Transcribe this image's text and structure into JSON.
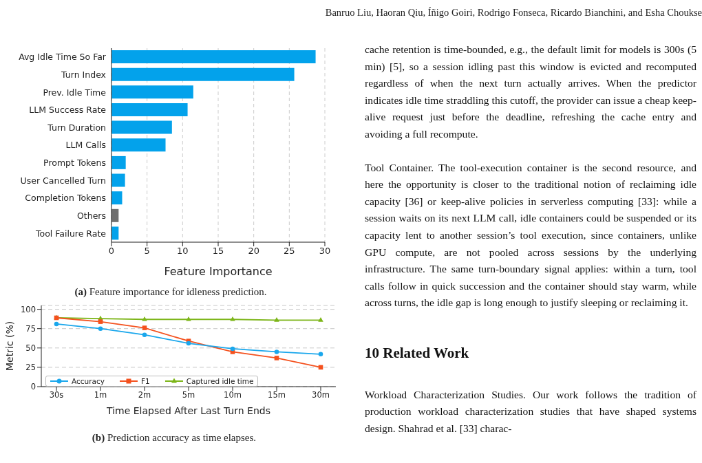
{
  "chart_data": [
    {
      "type": "bar",
      "orientation": "horizontal",
      "title": "(a) Feature importance for idleness prediction.",
      "xlabel": "Feature Importance",
      "categories": [
        "Avg Idle Time So Far",
        "Turn Index",
        "Prev. Idle Time",
        "LLM Success Rate",
        "Turn Duration",
        "LLM Calls",
        "Prompt Tokens",
        "User Cancelled Turn",
        "Completion Tokens",
        "Others",
        "Tool Failure Rate"
      ],
      "values": [
        28.7,
        25.7,
        11.5,
        10.7,
        8.5,
        7.6,
        2.0,
        1.9,
        1.5,
        1.0,
        1.0
      ],
      "colors": [
        "#03a2eb",
        "#03a2eb",
        "#03a2eb",
        "#03a2eb",
        "#03a2eb",
        "#03a2eb",
        "#03a2eb",
        "#03a2eb",
        "#03a2eb",
        "#707070",
        "#03a2eb"
      ],
      "xlim": [
        0,
        30
      ],
      "xticks": [
        0,
        5,
        10,
        15,
        20,
        25,
        30
      ],
      "grid": "x"
    },
    {
      "type": "line",
      "title": "(b) Prediction accuracy as time elapses.",
      "xlabel": "Time Elapsed After Last Turn Ends",
      "ylabel": "Metric (%)",
      "categories": [
        "30s",
        "1m",
        "2m",
        "5m",
        "10m",
        "15m",
        "30m"
      ],
      "series": [
        {
          "name": "Accuracy",
          "color": "#1aa7ec",
          "marker": "circle",
          "values": [
            81,
            75,
            67,
            56,
            49,
            45,
            42
          ]
        },
        {
          "name": "F1",
          "color": "#f4511e",
          "marker": "square",
          "values": [
            89,
            84,
            76,
            59,
            45,
            37,
            25
          ]
        },
        {
          "name": "Captured idle time",
          "color": "#7cb518",
          "marker": "triangle",
          "values": [
            89,
            88,
            87,
            87,
            87,
            86,
            86
          ]
        }
      ],
      "ylim": [
        0,
        105
      ],
      "yticks": [
        0,
        25,
        50,
        75,
        100
      ],
      "grid": "y",
      "legend": "bottom left",
      "line_style": "solid"
    },
    {
      "type": "other",
      "annotations": [
        "Banruo Liu, Haoran Qiu, Íñigo Goiri, Rodrigo Fonseca, Ricardo Bianchini, and Esha Choukse",
        "cache retention is time-bounded, e.g., the default limit for models is 300s (5 min) [5], so a session idling past this window is evicted and recomputed regardless of when the next turn actually arrives. When the predictor indicates idle time straddling this cutoff, the provider can issue a cheap keep-alive request just before the deadline, refreshing the cache entry and avoiding a full recompute.",
        "Tool Container. The tool-execution container is the second resource, and here the opportunity is closer to the traditional notion of reclaiming idle capacity [36] or keep-alive policies in serverless computing [33]: while a session waits on its next LLM call, idle containers could be suspended or its capacity lent to another session’s tool execution, since containers, unlike GPU compute, are not pooled across sessions by the underlying infrastructure. The same turn-boundary signal applies: within a turn, tool calls follow in quick succession and the container should stay warm, while across turns, the idle gap is long enough to justify sleeping or reclaiming it.",
        "10 Related Work",
        "Workload Characterization Studies. Our work follows the tradition of production workload characterization studies that have shaped systems design. Shahrad et al. [33] charac-"
      ]
    }
  ]
}
